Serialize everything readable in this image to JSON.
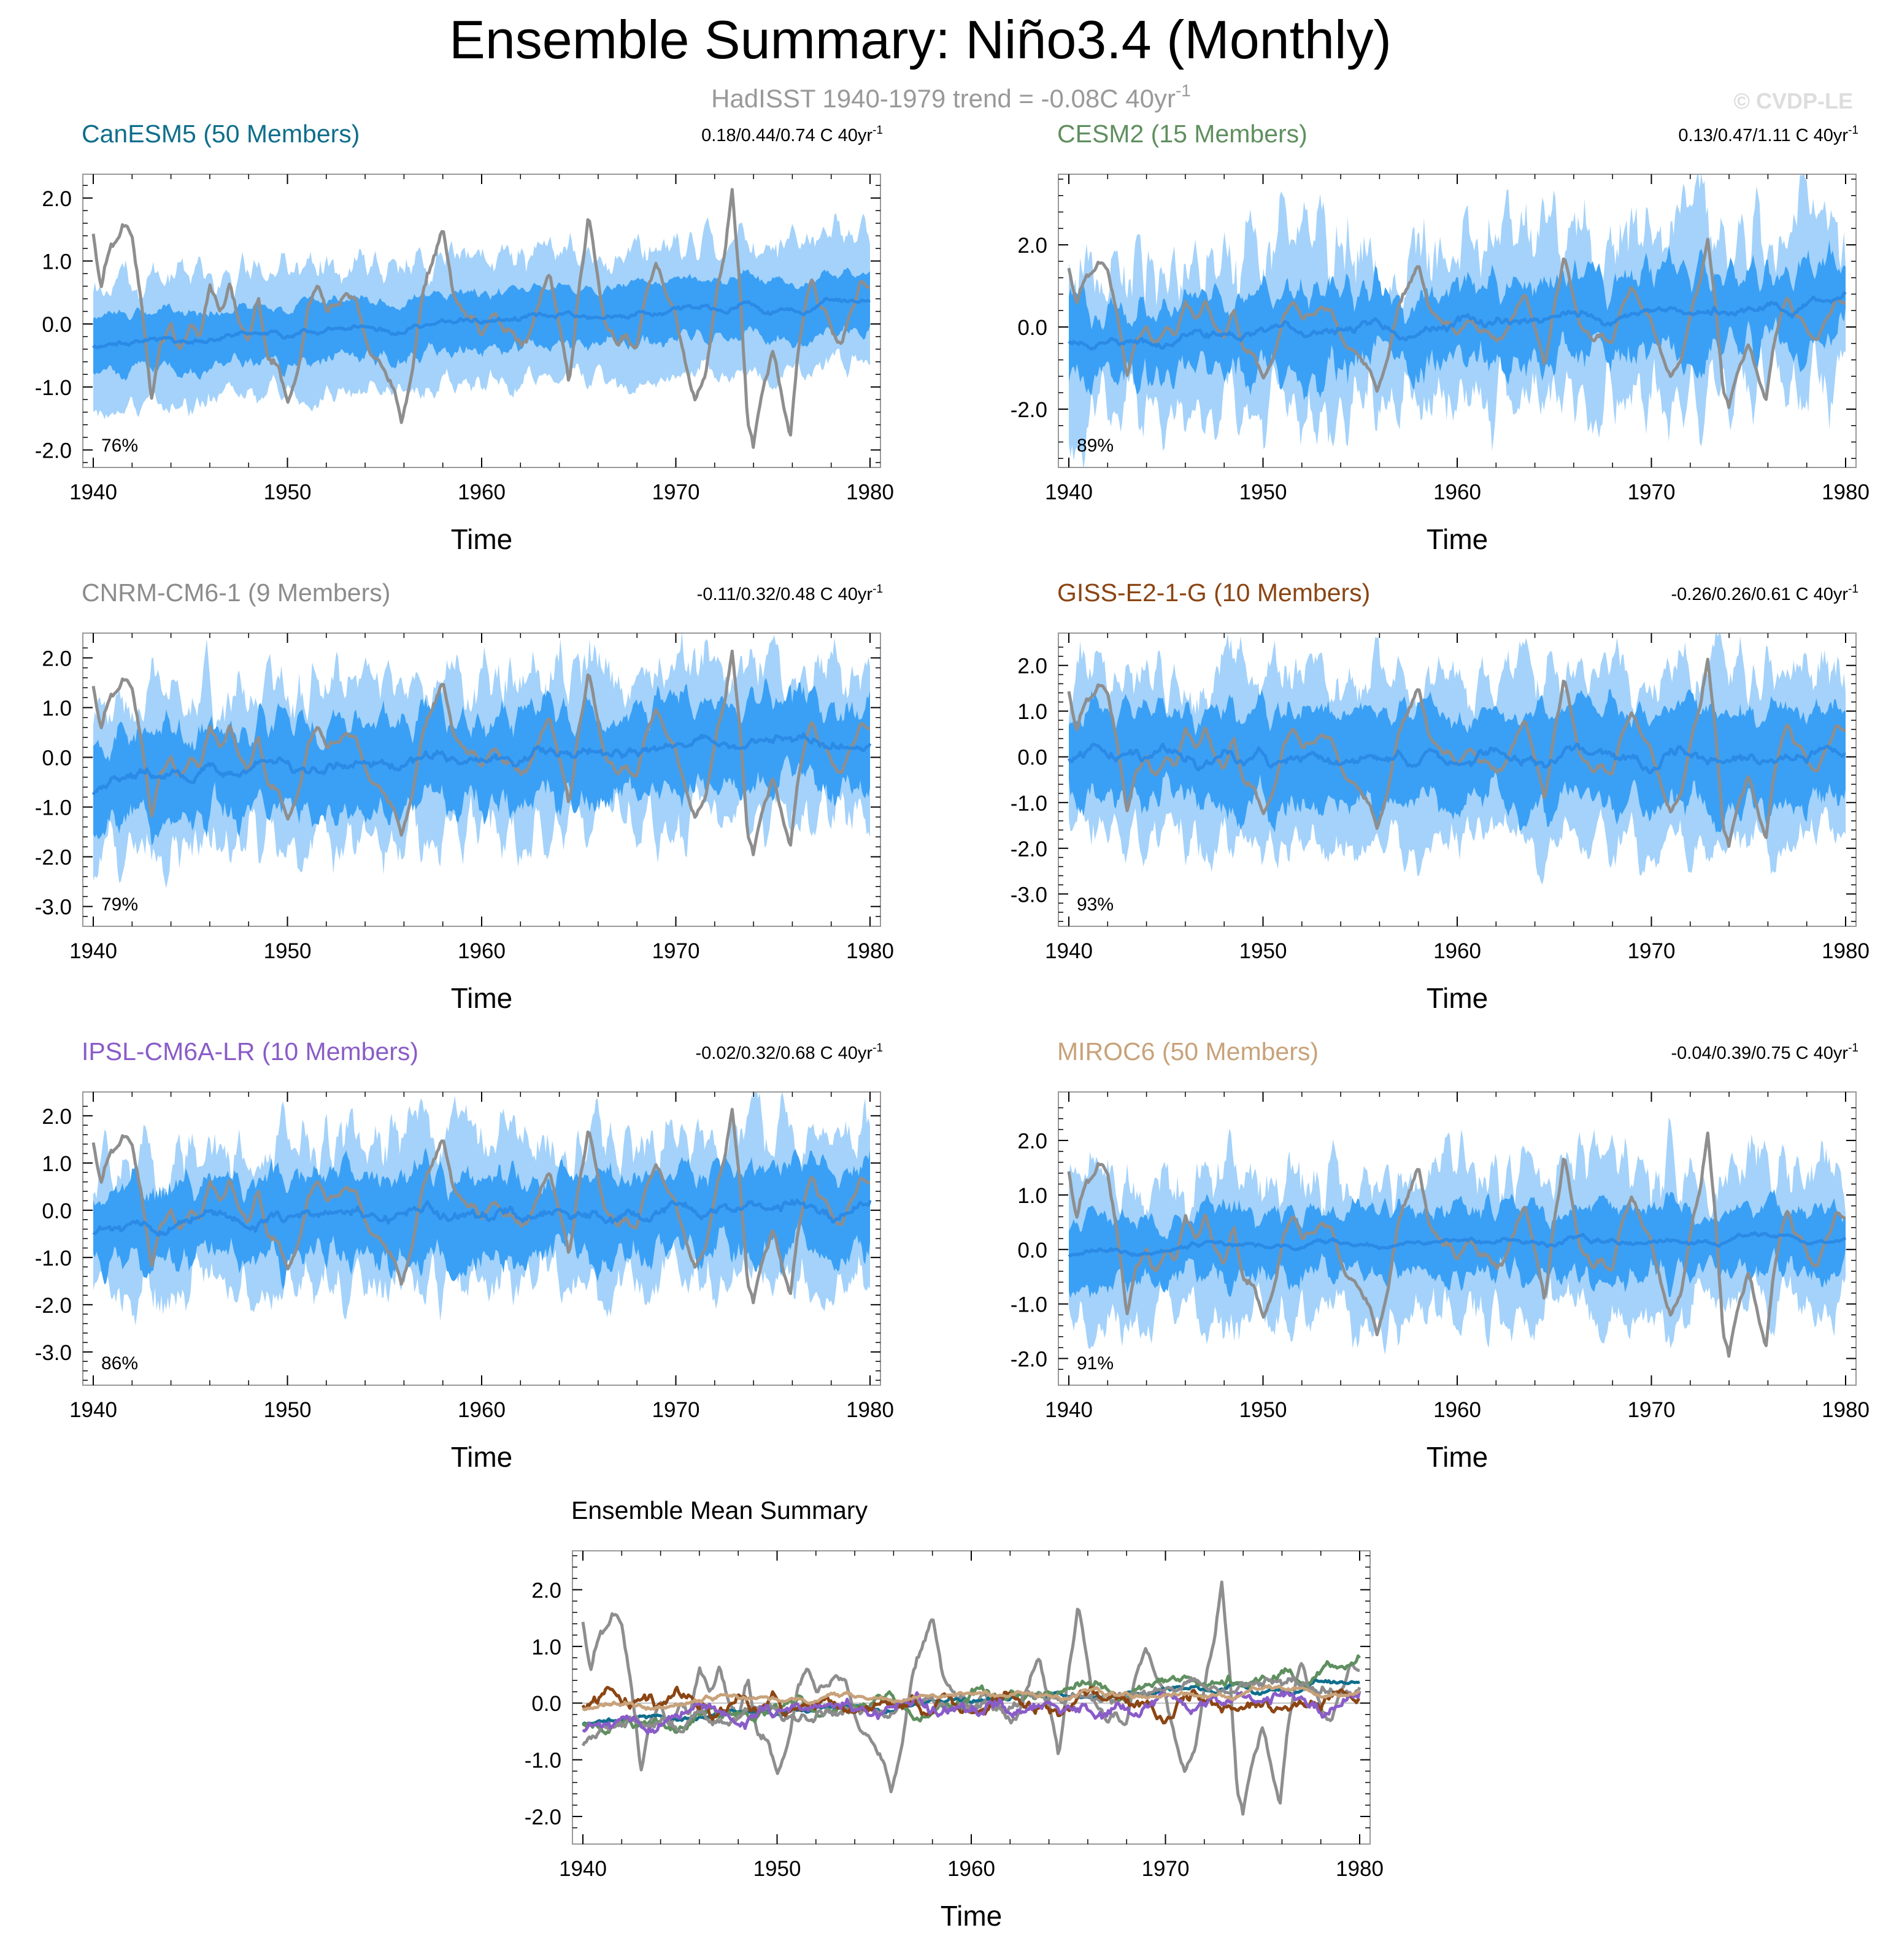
{
  "figure": {
    "title": "Ensemble Summary: Niño3.4 (Monthly)",
    "subtitle_main": "HadISST 1940-1979 trend = -0.08C 40yr",
    "subtitle_sup": "-1",
    "copyright": "© CVDP-LE"
  },
  "colors": {
    "band_outer": "#a4d2fa",
    "band_inner": "#3aa0f5",
    "ens_mean_line": "#2b8ae6",
    "obs_line": "#8e8e8e",
    "axis": "#000000",
    "zero_line": "#b0b0b0"
  },
  "chart_data": [
    {
      "type": "line",
      "id": "canesm5",
      "title": "CanESM5 (50 Members)",
      "title_color": "#0f6e8c",
      "stats": "0.18/0.44/0.74 C 40yr",
      "stats_sup": "-1",
      "percent": "76%",
      "xlabel": "Time",
      "x_ticks": [
        "1940",
        "1950",
        "1960",
        "1970",
        "1980"
      ],
      "xlim": [
        1940,
        1980
      ],
      "y_ticks": [
        "2.0",
        "1.0",
        "0.0",
        "-1.0",
        "-2.0"
      ],
      "y_tick_values": [
        2,
        1,
        0,
        -1,
        -2
      ],
      "ylim": [
        -2.2,
        2.3
      ],
      "mean_start": -0.3,
      "mean_end": 0.35,
      "mean_amp": 0.15,
      "inner_width": 0.45,
      "outer_width": 1.0,
      "spread_var": 0.4,
      "seed": 11
    },
    {
      "type": "line",
      "id": "cesm2",
      "title": "CESM2 (15 Members)",
      "title_color": "#5f8f5f",
      "stats": "0.13/0.47/1.11 C 40yr",
      "stats_sup": "-1",
      "percent": "89%",
      "xlabel": "Time",
      "x_ticks": [
        "1940",
        "1950",
        "1960",
        "1970",
        "1980"
      ],
      "xlim": [
        1940,
        1980
      ],
      "y_ticks": [
        "2.0",
        "0.0",
        "-2.0"
      ],
      "y_tick_values": [
        2,
        0,
        -2
      ],
      "ylim": [
        -3.3,
        3.6
      ],
      "mean_start": -0.4,
      "mean_end": 0.6,
      "mean_amp": 0.35,
      "inner_width": 0.9,
      "outer_width": 1.9,
      "spread_var": 0.9,
      "seed": 23
    },
    {
      "type": "line",
      "id": "cnrm",
      "title": "CNRM-CM6-1 (9 Members)",
      "title_color": "#8c8c8c",
      "stats": "-0.11/0.32/0.48 C 40yr",
      "stats_sup": "-1",
      "percent": "79%",
      "xlabel": "Time",
      "x_ticks": [
        "1940",
        "1950",
        "1960",
        "1970",
        "1980"
      ],
      "xlim": [
        1940,
        1980
      ],
      "y_ticks": [
        "2.0",
        "1.0",
        "0.0",
        "-1.0",
        "-2.0",
        "-3.0"
      ],
      "y_tick_values": [
        2,
        1,
        0,
        -1,
        -2,
        -3
      ],
      "ylim": [
        -3.3,
        2.4
      ],
      "mean_start": -0.4,
      "mean_end": 0.35,
      "mean_amp": 0.35,
      "inner_width": 0.85,
      "outer_width": 1.5,
      "spread_var": 0.7,
      "seed": 37
    },
    {
      "type": "line",
      "id": "giss",
      "title": "GISS-E2-1-G (10 Members)",
      "title_color": "#8b4513",
      "stats": "-0.26/0.26/0.61 C 40yr",
      "stats_sup": "-1",
      "percent": "93%",
      "xlabel": "Time",
      "x_ticks": [
        "1940",
        "1950",
        "1960",
        "1970",
        "1980"
      ],
      "xlim": [
        1940,
        1980
      ],
      "y_ticks": [
        "2.0",
        "1.0",
        "0.0",
        "-1.0",
        "-2.0",
        "-3.0"
      ],
      "y_tick_values": [
        2,
        1,
        0,
        -1,
        -2,
        -3
      ],
      "ylim": [
        -3.6,
        2.6
      ],
      "mean_start": 0.0,
      "mean_end": 0.0,
      "mean_amp": 0.35,
      "inner_width": 1.0,
      "outer_width": 1.8,
      "spread_var": 0.6,
      "seed": 41
    },
    {
      "type": "line",
      "id": "ipsl",
      "title": "IPSL-CM6A-LR (10 Members)",
      "title_color": "#8a5cc8",
      "stats": "-0.02/0.32/0.68 C 40yr",
      "stats_sup": "-1",
      "percent": "86%",
      "xlabel": "Time",
      "x_ticks": [
        "1940",
        "1950",
        "1960",
        "1970",
        "1980"
      ],
      "xlim": [
        1940,
        1980
      ],
      "y_ticks": [
        "2.0",
        "1.0",
        "0.0",
        "-1.0",
        "-2.0",
        "-3.0"
      ],
      "y_tick_values": [
        2,
        1,
        0,
        -1,
        -2,
        -3
      ],
      "ylim": [
        -3.6,
        2.4
      ],
      "mean_start": -0.2,
      "mean_end": 0.0,
      "mean_amp": 0.35,
      "inner_width": 0.85,
      "outer_width": 1.5,
      "spread_var": 0.7,
      "seed": 53
    },
    {
      "type": "line",
      "id": "miroc6",
      "title": "MIROC6 (50 Members)",
      "title_color": "#c8a27a",
      "stats": "-0.04/0.39/0.75 C 40yr",
      "stats_sup": "-1",
      "percent": "91%",
      "xlabel": "Time",
      "x_ticks": [
        "1940",
        "1950",
        "1960",
        "1970",
        "1980"
      ],
      "xlim": [
        1940,
        1980
      ],
      "y_ticks": [
        "2.0",
        "1.0",
        "0.0",
        "-1.0",
        "-2.0"
      ],
      "y_tick_values": [
        2,
        1,
        0,
        -1,
        -2
      ],
      "ylim": [
        -2.4,
        2.8
      ],
      "mean_start": 0.0,
      "mean_end": 0.25,
      "mean_amp": 0.15,
      "inner_width": 0.6,
      "outer_width": 1.3,
      "spread_var": 0.8,
      "seed": 67
    },
    {
      "type": "line",
      "id": "ens_mean_summary",
      "title": "Ensemble Mean Summary",
      "xlabel": "Time",
      "x_ticks": [
        "1940",
        "1950",
        "1960",
        "1970",
        "1980"
      ],
      "xlim": [
        1940,
        1980
      ],
      "y_ticks": [
        "2.0",
        "1.0",
        "0.0",
        "-1.0",
        "-2.0"
      ],
      "y_tick_values": [
        2,
        1,
        0,
        -1,
        -2
      ],
      "ylim": [
        -2.4,
        2.6
      ],
      "series": [
        {
          "name": "CanESM5",
          "color": "#0f6e8c",
          "mean_start": -0.3,
          "mean_end": 0.35,
          "mean_amp": 0.15,
          "seed": 11
        },
        {
          "name": "CESM2",
          "color": "#5f8f5f",
          "mean_start": -0.4,
          "mean_end": 0.6,
          "mean_amp": 0.35,
          "seed": 23
        },
        {
          "name": "CNRM-CM6-1",
          "color": "#8c8c8c",
          "mean_start": -0.4,
          "mean_end": 0.35,
          "mean_amp": 0.35,
          "seed": 37
        },
        {
          "name": "GISS-E2-1-G",
          "color": "#8b4513",
          "mean_start": 0.0,
          "mean_end": 0.0,
          "mean_amp": 0.35,
          "seed": 41
        },
        {
          "name": "IPSL-CM6A-LR",
          "color": "#8a5cc8",
          "mean_start": -0.2,
          "mean_end": 0.0,
          "mean_amp": 0.35,
          "seed": 53
        },
        {
          "name": "MIROC6",
          "color": "#c8a27a",
          "mean_start": 0.0,
          "mean_end": 0.25,
          "mean_amp": 0.15,
          "seed": 67
        }
      ]
    }
  ],
  "observations": {
    "name": "HadISST",
    "keypoints": [
      [
        1940.0,
        1.3
      ],
      [
        1940.4,
        0.5
      ],
      [
        1940.9,
        1.2
      ],
      [
        1941.5,
        1.5
      ],
      [
        1942.0,
        1.3
      ],
      [
        1942.5,
        0.2
      ],
      [
        1943.0,
        -1.2
      ],
      [
        1943.5,
        -0.4
      ],
      [
        1944.0,
        0.0
      ],
      [
        1944.5,
        -0.4
      ],
      [
        1945.0,
        -0.1
      ],
      [
        1945.5,
        -0.3
      ],
      [
        1946.0,
        0.6
      ],
      [
        1946.5,
        0.2
      ],
      [
        1947.0,
        0.6
      ],
      [
        1947.5,
        0.0
      ],
      [
        1948.0,
        -0.2
      ],
      [
        1948.5,
        0.4
      ],
      [
        1949.0,
        -0.6
      ],
      [
        1949.5,
        -0.6
      ],
      [
        1950.0,
        -1.3
      ],
      [
        1950.5,
        -0.9
      ],
      [
        1951.0,
        0.2
      ],
      [
        1951.5,
        0.7
      ],
      [
        1952.0,
        0.3
      ],
      [
        1952.5,
        0.3
      ],
      [
        1953.0,
        0.5
      ],
      [
        1953.5,
        0.4
      ],
      [
        1954.0,
        -0.3
      ],
      [
        1954.5,
        -0.6
      ],
      [
        1955.0,
        -0.8
      ],
      [
        1955.5,
        -1.0
      ],
      [
        1955.9,
        -1.6
      ],
      [
        1956.5,
        -0.6
      ],
      [
        1957.0,
        0.5
      ],
      [
        1957.5,
        1.0
      ],
      [
        1958.0,
        1.5
      ],
      [
        1958.5,
        0.5
      ],
      [
        1959.0,
        0.2
      ],
      [
        1959.5,
        0.1
      ],
      [
        1960.0,
        -0.1
      ],
      [
        1960.5,
        0.2
      ],
      [
        1961.0,
        0.0
      ],
      [
        1961.5,
        -0.1
      ],
      [
        1962.0,
        -0.3
      ],
      [
        1962.5,
        -0.2
      ],
      [
        1963.0,
        0.3
      ],
      [
        1963.5,
        1.0
      ],
      [
        1964.0,
        0.0
      ],
      [
        1964.5,
        -1.0
      ],
      [
        1965.0,
        0.5
      ],
      [
        1965.5,
        1.7
      ],
      [
        1966.0,
        0.7
      ],
      [
        1966.5,
        -0.1
      ],
      [
        1967.0,
        -0.3
      ],
      [
        1967.5,
        -0.2
      ],
      [
        1968.0,
        -0.4
      ],
      [
        1968.5,
        0.4
      ],
      [
        1969.0,
        1.0
      ],
      [
        1969.5,
        0.5
      ],
      [
        1970.0,
        0.2
      ],
      [
        1970.5,
        -0.6
      ],
      [
        1971.0,
        -1.3
      ],
      [
        1971.5,
        -0.8
      ],
      [
        1972.0,
        0.3
      ],
      [
        1972.5,
        1.2
      ],
      [
        1972.9,
        2.2
      ],
      [
        1973.3,
        0.5
      ],
      [
        1973.7,
        -1.5
      ],
      [
        1974.0,
        -2.0
      ],
      [
        1974.5,
        -1.0
      ],
      [
        1975.0,
        -0.5
      ],
      [
        1975.5,
        -1.3
      ],
      [
        1975.9,
        -1.8
      ],
      [
        1976.3,
        -0.5
      ],
      [
        1976.7,
        0.5
      ],
      [
        1977.0,
        0.7
      ],
      [
        1977.5,
        0.3
      ],
      [
        1978.0,
        -0.1
      ],
      [
        1978.5,
        -0.3
      ],
      [
        1979.0,
        0.1
      ],
      [
        1979.5,
        0.6
      ],
      [
        1980.0,
        0.7
      ]
    ]
  }
}
